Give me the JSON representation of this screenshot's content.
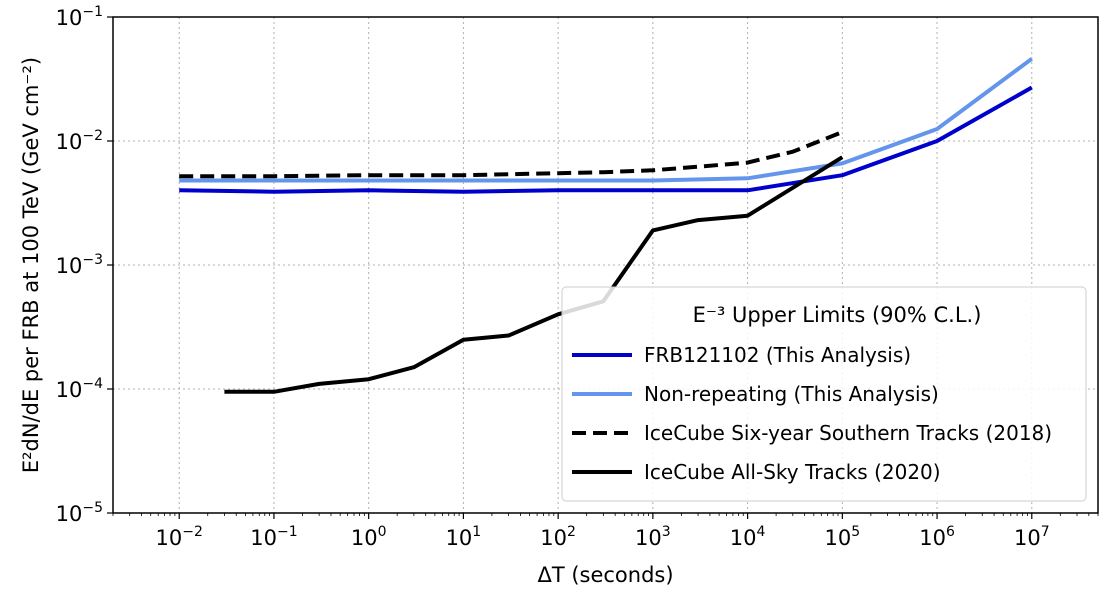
{
  "chart_data": {
    "type": "line",
    "xlabel": "ΔT (seconds)",
    "ylabel": "E²dN/dE per FRB at 100 TeV (GeV cm⁻²)",
    "xscale": "log",
    "yscale": "log",
    "xlim": [
      0.002,
      50000000
    ],
    "ylim": [
      1e-05,
      0.1
    ],
    "x_ticks": [
      {
        "value": 0.01,
        "base": "10",
        "exp": "−2"
      },
      {
        "value": 0.1,
        "base": "10",
        "exp": "−1"
      },
      {
        "value": 1,
        "base": "10",
        "exp": "0"
      },
      {
        "value": 10,
        "base": "10",
        "exp": "1"
      },
      {
        "value": 100,
        "base": "10",
        "exp": "2"
      },
      {
        "value": 1000,
        "base": "10",
        "exp": "3"
      },
      {
        "value": 10000,
        "base": "10",
        "exp": "4"
      },
      {
        "value": 100000,
        "base": "10",
        "exp": "5"
      },
      {
        "value": 1000000,
        "base": "10",
        "exp": "6"
      },
      {
        "value": 10000000,
        "base": "10",
        "exp": "7"
      }
    ],
    "y_ticks": [
      {
        "value": 1e-05,
        "base": "10",
        "exp": "−5"
      },
      {
        "value": 0.0001,
        "base": "10",
        "exp": "−4"
      },
      {
        "value": 0.001,
        "base": "10",
        "exp": "−3"
      },
      {
        "value": 0.01,
        "base": "10",
        "exp": "−2"
      },
      {
        "value": 0.1,
        "base": "10",
        "exp": "−1"
      }
    ],
    "grid": true,
    "legend": {
      "title": "E⁻³ Upper Limits (90% C.L.)",
      "placement": "lower-right"
    },
    "series": [
      {
        "name": "FRB121102 (This Analysis)",
        "color": "#0000cc",
        "style": "solid",
        "x": [
          0.01,
          0.1,
          1,
          10,
          100,
          1000,
          10000,
          100000,
          1000000,
          10000000
        ],
        "y": [
          0.004,
          0.0039,
          0.004,
          0.0039,
          0.004,
          0.004,
          0.004,
          0.0053,
          0.01,
          0.027
        ]
      },
      {
        "name": "Non-repeating (This Analysis)",
        "color": "#6495ed",
        "style": "solid",
        "x": [
          0.01,
          0.1,
          1,
          10,
          100,
          1000,
          10000,
          100000,
          1000000,
          10000000
        ],
        "y": [
          0.0048,
          0.0048,
          0.0048,
          0.0048,
          0.0048,
          0.0048,
          0.005,
          0.0066,
          0.0125,
          0.046
        ]
      },
      {
        "name": "IceCube Six-year Southern Tracks (2018)",
        "color": "#000000",
        "style": "dashed",
        "x": [
          0.01,
          0.1,
          1,
          10,
          100,
          300,
          1000,
          3000,
          10000,
          30000,
          100000
        ],
        "y": [
          0.0052,
          0.0052,
          0.0053,
          0.0053,
          0.0055,
          0.0056,
          0.0058,
          0.0062,
          0.0067,
          0.0082,
          0.0118
        ]
      },
      {
        "name": "IceCube All-Sky Tracks (2020)",
        "color": "#000000",
        "style": "solid",
        "x": [
          0.03,
          0.1,
          0.3,
          1,
          3,
          10,
          30,
          100,
          300,
          1000,
          3000,
          10000,
          100000
        ],
        "y": [
          9.5e-05,
          9.5e-05,
          0.00011,
          0.00012,
          0.00015,
          0.00025,
          0.00027,
          0.0004,
          0.00051,
          0.0019,
          0.0023,
          0.0025,
          0.0074
        ]
      }
    ]
  }
}
